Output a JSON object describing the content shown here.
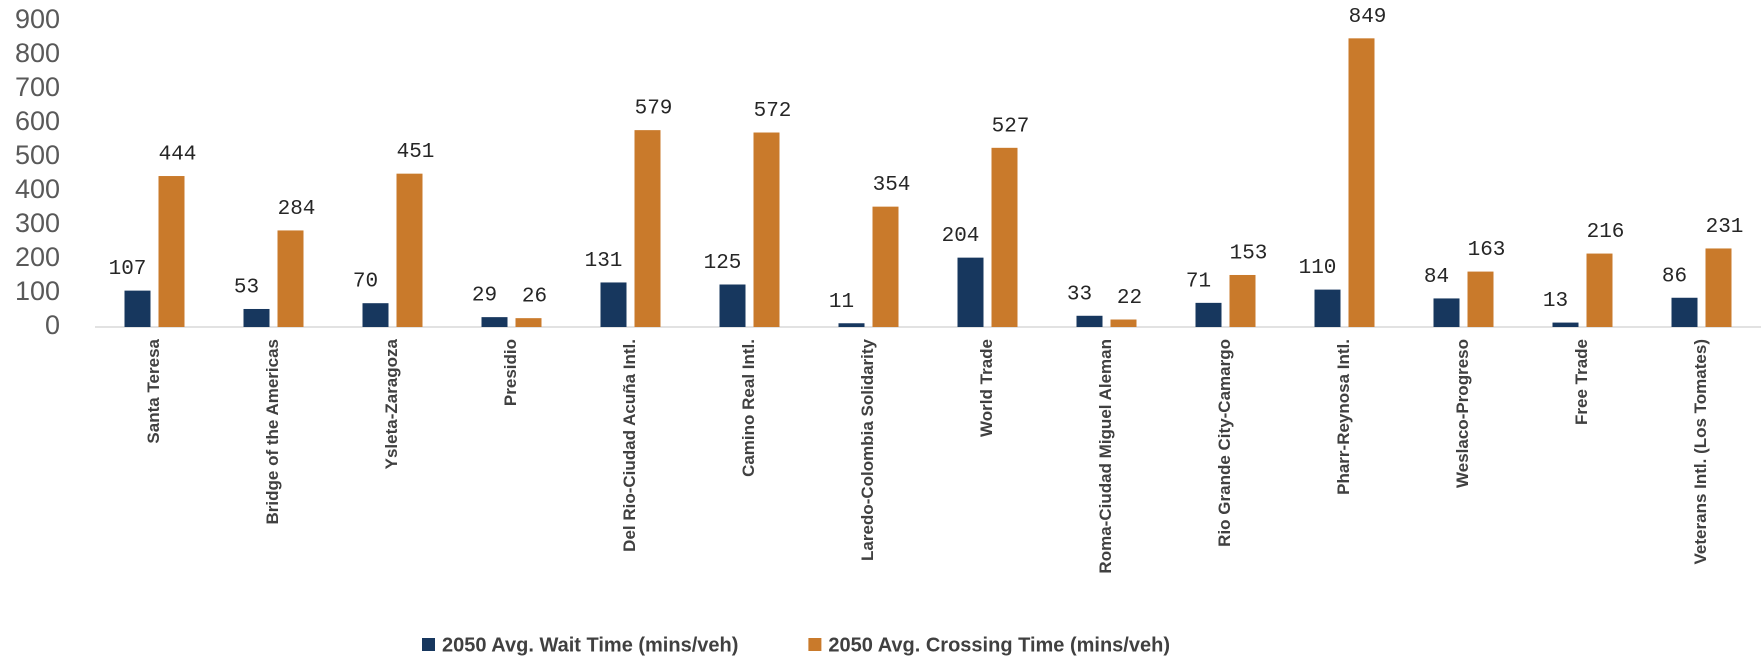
{
  "chart_data": {
    "type": "bar",
    "categories": [
      "Santa Teresa",
      "Bridge of the Americas",
      "Ysleta-Zaragoza",
      "Presidio",
      "Del Rio-Ciudad Acuña Intl.",
      "Camino Real Intl.",
      "Laredo-Colombia Solidarity",
      "World Trade",
      "Roma-Ciudad Miguel Aleman",
      "Rio Grande City-Camargo",
      "Pharr-Reynosa Intl.",
      "Weslaco-Progreso",
      "Free Trade",
      "Veterans Intl. (Los Tomates)"
    ],
    "series": [
      {
        "name": "2050 Avg. Wait Time (mins/veh)",
        "color": "#17375e",
        "values": [
          107,
          53,
          70,
          29,
          131,
          125,
          11,
          204,
          33,
          71,
          110,
          84,
          13,
          86
        ]
      },
      {
        "name": "2050 Avg. Crossing Time (mins/veh)",
        "color": "#c97a2b",
        "values": [
          444,
          284,
          451,
          26,
          579,
          572,
          354,
          527,
          22,
          153,
          849,
          163,
          216,
          231
        ]
      }
    ],
    "ylim": [
      0,
      900
    ],
    "yticks": [
      0,
      100,
      200,
      300,
      400,
      500,
      600,
      700,
      800,
      900
    ],
    "grid": false,
    "legend": "bottom"
  }
}
